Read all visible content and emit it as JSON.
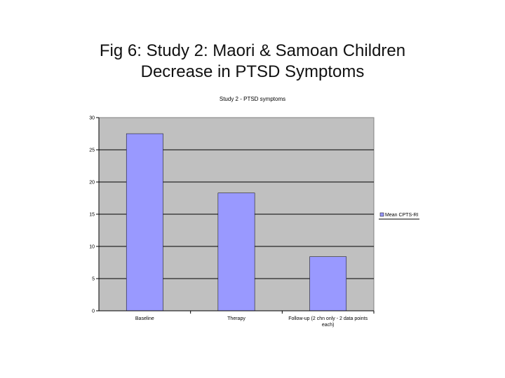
{
  "slide": {
    "title_line1": "Fig 6: Study 2: Maori & Samoan Children",
    "title_line2": "Decrease in PTSD Symptoms"
  },
  "chart_data": {
    "type": "bar",
    "title": "Study 2 - PTSD symptoms",
    "categories": [
      "Baseline",
      "Therapy",
      "Follow-up (2 chn only - 2 data points each)"
    ],
    "category_label_lines": [
      [
        "Baseline"
      ],
      [
        "Therapy"
      ],
      [
        "Follow-up (2 chn only - 2 data points",
        "each)"
      ]
    ],
    "series": [
      {
        "name": "Mean CPTS-RI",
        "values": [
          27.5,
          18.3,
          8.4
        ]
      }
    ],
    "ylim": [
      0,
      30
    ],
    "yticks": [
      "0",
      "5",
      "10",
      "15",
      "20",
      "25",
      "30"
    ],
    "xlabel": "",
    "ylabel": "",
    "grid": true,
    "legend_position": "right",
    "colors": {
      "bar": "#9999ff",
      "plot_background": "#c0c0c0",
      "gridline": "#000000"
    }
  }
}
